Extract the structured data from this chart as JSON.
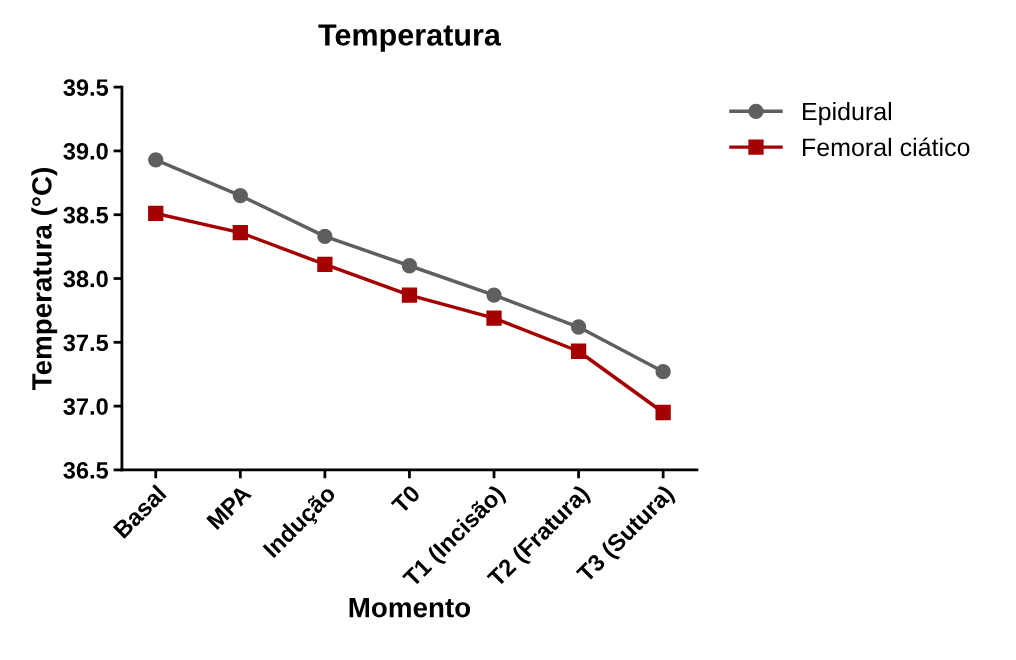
{
  "chart_data": {
    "type": "line",
    "title": "Temperatura",
    "xlabel": "Momento",
    "ylabel": "Temperatura (°C)",
    "categories": [
      "Basal",
      "MPA",
      "Indução",
      "T0",
      "T1 (Incisão)",
      "T2 (Fratura)",
      "T3 (Sutura)"
    ],
    "series": [
      {
        "name": "Epidural",
        "color": "#5f5f5f",
        "marker": "circle",
        "values": [
          38.93,
          38.65,
          38.33,
          38.1,
          37.87,
          37.62,
          37.27
        ]
      },
      {
        "name": "Femoral ciático",
        "color": "#a50000",
        "marker": "square",
        "values": [
          38.51,
          38.36,
          38.11,
          37.87,
          37.69,
          37.43,
          36.95
        ]
      }
    ],
    "ylim": [
      36.5,
      39.5
    ],
    "yticks": [
      {
        "value": 36.5,
        "label": "36.5"
      },
      {
        "value": 37.0,
        "label": "37.0"
      },
      {
        "value": 37.5,
        "label": "37.5"
      },
      {
        "value": 38.0,
        "label": "38.0"
      },
      {
        "value": 38.5,
        "label": "38.5"
      },
      {
        "value": 39.0,
        "label": "39.0"
      },
      {
        "value": 39.5,
        "label": "39.5"
      }
    ],
    "grid": false,
    "legend": "top right",
    "line_style": "solid"
  }
}
